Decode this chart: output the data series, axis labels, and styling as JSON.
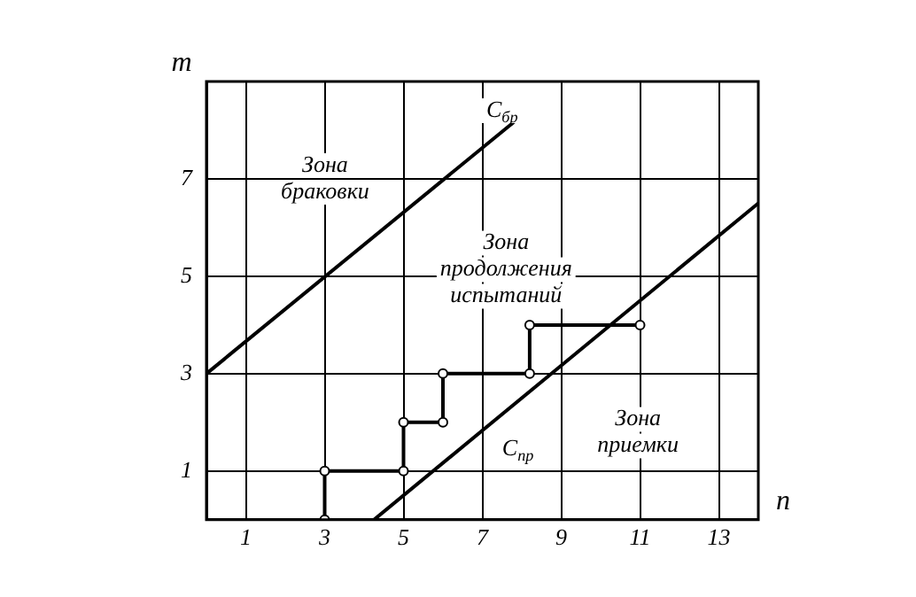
{
  "chart_data": {
    "type": "line",
    "xlabel": "n",
    "ylabel": "m",
    "series": [
      {
        "color": "#000000",
        "x": [
          0,
          8
        ],
        "values": [
          3,
          8.3
        ],
        "marker": "none"
      },
      {
        "color": "#000000",
        "x": [
          4.25,
          14
        ],
        "values": [
          0,
          6.5
        ],
        "marker": "none"
      },
      {
        "color": "#000000",
        "x": [
          3,
          3,
          5,
          5,
          6,
          6,
          8.2,
          8.2,
          11
        ],
        "values": [
          0,
          1,
          1,
          2,
          2,
          3,
          3,
          4,
          4
        ],
        "marker": "circle"
      }
    ],
    "xlim": [
      0,
      14
    ],
    "xticks": [
      1,
      3,
      5,
      7,
      9,
      11,
      13
    ],
    "ylim": [
      0,
      9
    ],
    "yticks": [
      1,
      3,
      5,
      7
    ],
    "grid": true,
    "legend": false,
    "annotations": [
      {
        "text": "C$_{бр}$",
        "x": 7.5,
        "y": 8.4
      },
      {
        "text": "C$_{пр}$",
        "x": 7.9,
        "y": 1.45
      },
      "Зона\nбраковки",
      "Зона\nпродолжения\nиспытаний",
      "Зона\nприемки"
    ]
  }
}
